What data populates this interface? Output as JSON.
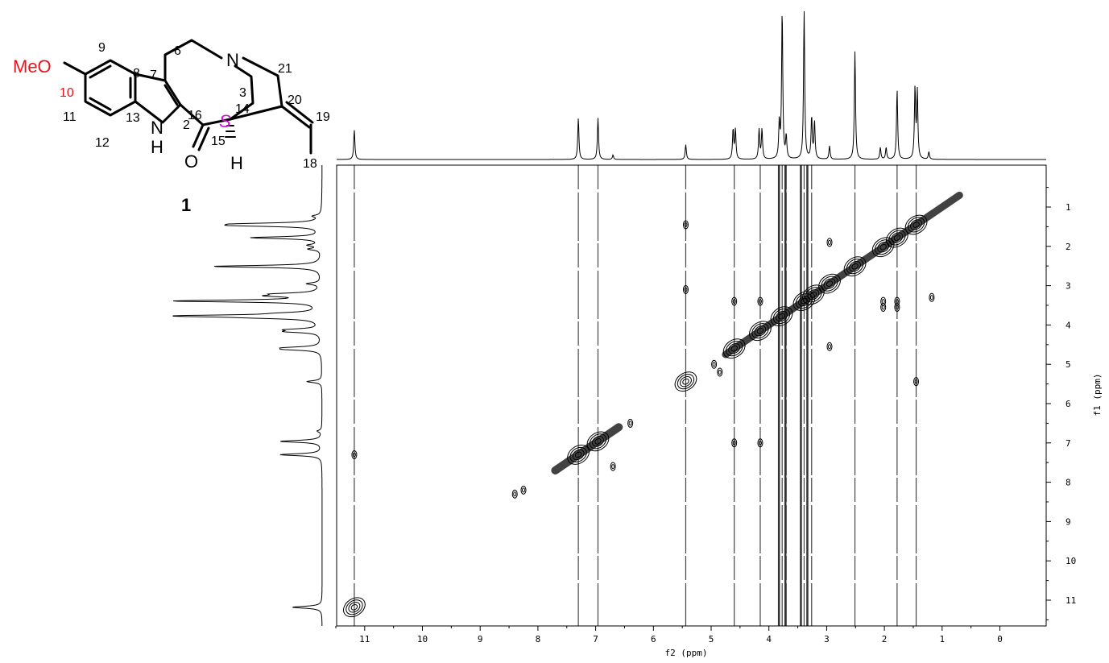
{
  "molecule": {
    "compound_number": "1",
    "substituent": "MeO",
    "stereo_label": "S",
    "atom_labels": {
      "n6": "6",
      "n7": "7",
      "n8": "8",
      "n9": "9",
      "n10": "10",
      "n11": "11",
      "n12": "12",
      "n13": "13",
      "n2": "2",
      "n16": "16",
      "n15": "15",
      "n3": "3",
      "n14": "14",
      "n20": "20",
      "n19": "19",
      "n18": "18",
      "n21": "21"
    },
    "elements": {
      "N": "N",
      "NH_N": "N",
      "NH_H": "H",
      "O": "O",
      "H": "H"
    },
    "colors": {
      "substituent": "#e8141b",
      "stereo": "#d10fd6",
      "bond": "#000000"
    }
  },
  "chart_data": {
    "type": "2D NMR contour (COSY)",
    "x_axis": {
      "label": "f2 (ppm)",
      "range": [
        12,
        0
      ],
      "ticks": [
        "11",
        "10",
        "9",
        "8",
        "7",
        "6",
        "5",
        "4",
        "3",
        "2",
        "1",
        "0"
      ]
    },
    "y_axis": {
      "label": "f1 (ppm)",
      "range": [
        0.3,
        11.8
      ],
      "ticks": [
        "1",
        "2",
        "3",
        "4",
        "5",
        "6",
        "7",
        "8",
        "9",
        "10",
        "11"
      ]
    },
    "projection_peaks": [
      {
        "ppm": 11.18,
        "intensity": 0.2
      },
      {
        "ppm": 7.3,
        "intensity": 0.28
      },
      {
        "ppm": 6.96,
        "intensity": 0.28
      },
      {
        "ppm": 6.7,
        "intensity": 0.03
      },
      {
        "ppm": 5.44,
        "intensity": 0.1
      },
      {
        "ppm": 4.62,
        "intensity": 0.2
      },
      {
        "ppm": 4.58,
        "intensity": 0.2
      },
      {
        "ppm": 4.17,
        "intensity": 0.2
      },
      {
        "ppm": 4.12,
        "intensity": 0.2
      },
      {
        "ppm": 3.82,
        "intensity": 0.24
      },
      {
        "ppm": 3.77,
        "intensity": 1.0
      },
      {
        "ppm": 3.7,
        "intensity": 0.15
      },
      {
        "ppm": 3.39,
        "intensity": 1.0
      },
      {
        "ppm": 3.26,
        "intensity": 0.28
      },
      {
        "ppm": 3.21,
        "intensity": 0.25
      },
      {
        "ppm": 2.95,
        "intensity": 0.09
      },
      {
        "ppm": 2.51,
        "intensity": 0.73
      },
      {
        "ppm": 2.07,
        "intensity": 0.08
      },
      {
        "ppm": 1.97,
        "intensity": 0.08
      },
      {
        "ppm": 1.78,
        "intensity": 0.47
      },
      {
        "ppm": 1.47,
        "intensity": 0.47
      },
      {
        "ppm": 1.43,
        "intensity": 0.45
      },
      {
        "ppm": 1.23,
        "intensity": 0.05
      }
    ],
    "diagonal_peaks": [
      11.18,
      7.3,
      6.96,
      5.44,
      4.6,
      4.15,
      3.78,
      3.39,
      3.23,
      2.95,
      2.51,
      2.02,
      1.78,
      1.45
    ],
    "cross_peaks": [
      {
        "x": 11.18,
        "y": 7.3
      },
      {
        "x": 5.44,
        "y": 1.45
      },
      {
        "x": 5.44,
        "y": 3.1
      },
      {
        "x": 4.6,
        "y": 3.4
      },
      {
        "x": 4.6,
        "y": 7.0
      },
      {
        "x": 4.15,
        "y": 3.4
      },
      {
        "x": 4.15,
        "y": 7.0
      },
      {
        "x": 2.95,
        "y": 1.9
      },
      {
        "x": 2.95,
        "y": 4.55
      },
      {
        "x": 2.02,
        "y": 3.4
      },
      {
        "x": 2.02,
        "y": 3.55
      },
      {
        "x": 1.78,
        "y": 3.4
      },
      {
        "x": 1.78,
        "y": 3.55
      },
      {
        "x": 1.45,
        "y": 5.44
      },
      {
        "x": 1.18,
        "y": 3.3
      },
      {
        "x": 6.4,
        "y": 6.5
      },
      {
        "x": 6.7,
        "y": 7.6
      },
      {
        "x": 8.4,
        "y": 8.3
      },
      {
        "x": 8.25,
        "y": 8.2
      },
      {
        "x": 4.85,
        "y": 5.2
      },
      {
        "x": 4.95,
        "y": 5.0
      }
    ],
    "t1_streaks": [
      7.3,
      6.96,
      5.44,
      4.6,
      4.15,
      3.82,
      3.77,
      3.7,
      3.39,
      3.26,
      2.51,
      1.78,
      1.45,
      11.18
    ]
  }
}
